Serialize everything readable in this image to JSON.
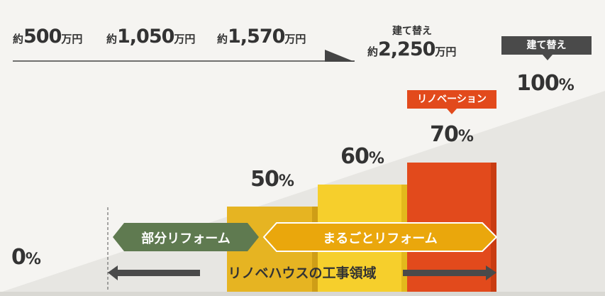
{
  "colors": {
    "bar_partial": "#e6b422",
    "bar_whole": "#f6cf2c",
    "bar_renovation": "#e24a1c",
    "partial_reform_label": "#5f7a50",
    "whole_reform_label": "#eaa70c",
    "tag_dark": "#4a4a4a",
    "arrow": "#4a4a4a"
  },
  "prices": [
    {
      "prefix": "約",
      "value": "500",
      "unit": "万円"
    },
    {
      "prefix": "約",
      "value": "1,050",
      "unit": "万円"
    },
    {
      "prefix": "約",
      "value": "1,570",
      "unit": "万円"
    }
  ],
  "rebuild_price": {
    "caption": "建て替え",
    "prefix": "約",
    "value": "2,250",
    "unit": "万円"
  },
  "zero_label": {
    "value": "0",
    "unit": "%"
  },
  "tags": {
    "renovation": "リノベーション",
    "rebuild": "建て替え"
  },
  "labels": {
    "partial_reform": "部分リフォーム",
    "whole_reform": "まるごとリフォーム",
    "scope": "リノベハウスの工事領域"
  },
  "chart_data": {
    "type": "bar",
    "categories": [
      "部分リフォーム",
      "まるごとリフォーム",
      "リノベーション",
      "建て替え"
    ],
    "values": [
      50,
      60,
      70,
      100
    ],
    "value_labels": [
      {
        "value": "50",
        "unit": "%"
      },
      {
        "value": "60",
        "unit": "%"
      },
      {
        "value": "70",
        "unit": "%"
      },
      {
        "value": "100",
        "unit": "%"
      }
    ],
    "costs": [
      "約500万円",
      "約1,050万円",
      "約1,570万円",
      "約2,250万円"
    ],
    "ylim": [
      0,
      100
    ],
    "title": "",
    "xlabel": "",
    "ylabel": "",
    "grid": false
  }
}
